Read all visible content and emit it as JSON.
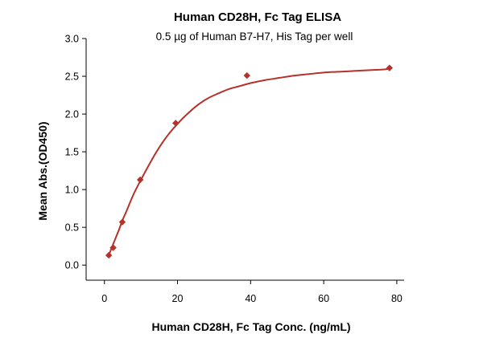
{
  "chart_data": {
    "type": "scatter",
    "title": "Human CD28H, Fc Tag ELISA",
    "subtitle": "0.5 µg of Human B7-H7, His Tag per well",
    "xlabel": "Human CD28H, Fc Tag Conc. (ng/mL)",
    "ylabel": "Mean Abs.(OD450)",
    "xlim": [
      -5,
      82
    ],
    "ylim": [
      -0.2,
      3.0
    ],
    "x_ticks": [
      0,
      20,
      40,
      60,
      80
    ],
    "y_ticks": [
      0.0,
      0.5,
      1.0,
      1.5,
      2.0,
      2.5,
      3.0
    ],
    "x_tick_labels": [
      "0",
      "20",
      "40",
      "60",
      "80"
    ],
    "y_tick_labels": [
      "0.0",
      "0.5",
      "1.0",
      "1.5",
      "2.0",
      "2.5",
      "3.0"
    ],
    "grid": false,
    "series": [
      {
        "marker": "diamond",
        "color": "#b5312a",
        "x": [
          1.2,
          2.4,
          4.9,
          9.8,
          19.5,
          39,
          78
        ],
        "y": [
          0.13,
          0.23,
          0.57,
          1.13,
          1.88,
          2.51,
          2.61
        ]
      }
    ],
    "fit_curve": {
      "type": "line",
      "color": "#b5312a",
      "model": "4PL",
      "x": [
        1.2,
        2,
        3,
        4,
        5,
        6,
        8,
        10,
        12,
        14,
        16,
        18,
        20,
        22,
        25,
        28,
        31,
        34,
        37,
        40,
        44,
        48,
        52,
        56,
        60,
        64,
        68,
        72,
        76,
        78
      ],
      "y": [
        0.13,
        0.23,
        0.35,
        0.47,
        0.6,
        0.71,
        0.94,
        1.13,
        1.31,
        1.48,
        1.63,
        1.76,
        1.87,
        1.97,
        2.1,
        2.2,
        2.27,
        2.33,
        2.37,
        2.41,
        2.45,
        2.48,
        2.51,
        2.53,
        2.55,
        2.56,
        2.57,
        2.58,
        2.59,
        2.6
      ]
    }
  }
}
